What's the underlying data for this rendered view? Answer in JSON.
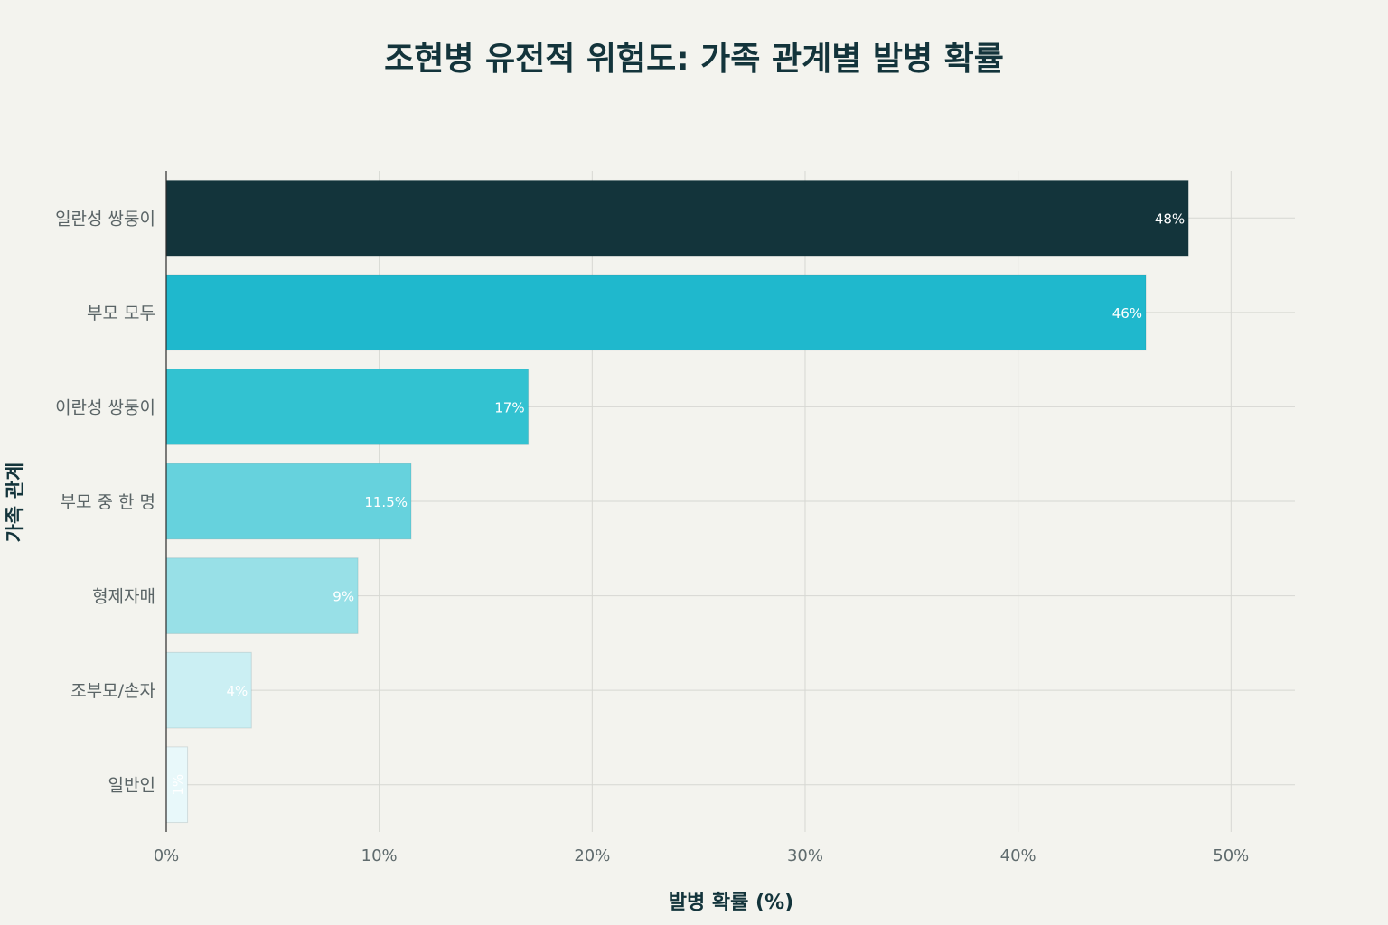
{
  "chart_data": {
    "type": "bar",
    "orientation": "horizontal",
    "title": "조현병 유전적 위험도: 가족 관계별 발병 확률",
    "xlabel": "발병 확률 (%)",
    "ylabel": "가족 관계",
    "categories": [
      "일란성 쌍둥이",
      "부모 모두",
      "이란성 쌍둥이",
      "부모 중 한 명",
      "형제자매",
      "조부모/손자",
      "일반인"
    ],
    "values": [
      48,
      46,
      17,
      11.5,
      9,
      4,
      1
    ],
    "data_labels": [
      "48%",
      "46%",
      "17%",
      "11.5%",
      "9%",
      "4%",
      "1%"
    ],
    "colors": [
      "#13343b",
      "#1fb8cd",
      "#32c2d1",
      "#66d2dd",
      "#98e0e7",
      "#cbeff3",
      "#e8f8fa"
    ],
    "xlim": [
      0,
      53
    ],
    "xticks": [
      0,
      10,
      20,
      30,
      40,
      50
    ],
    "xtick_labels": [
      "0%",
      "10%",
      "20%",
      "30%",
      "40%",
      "50%"
    ],
    "grid": true
  }
}
